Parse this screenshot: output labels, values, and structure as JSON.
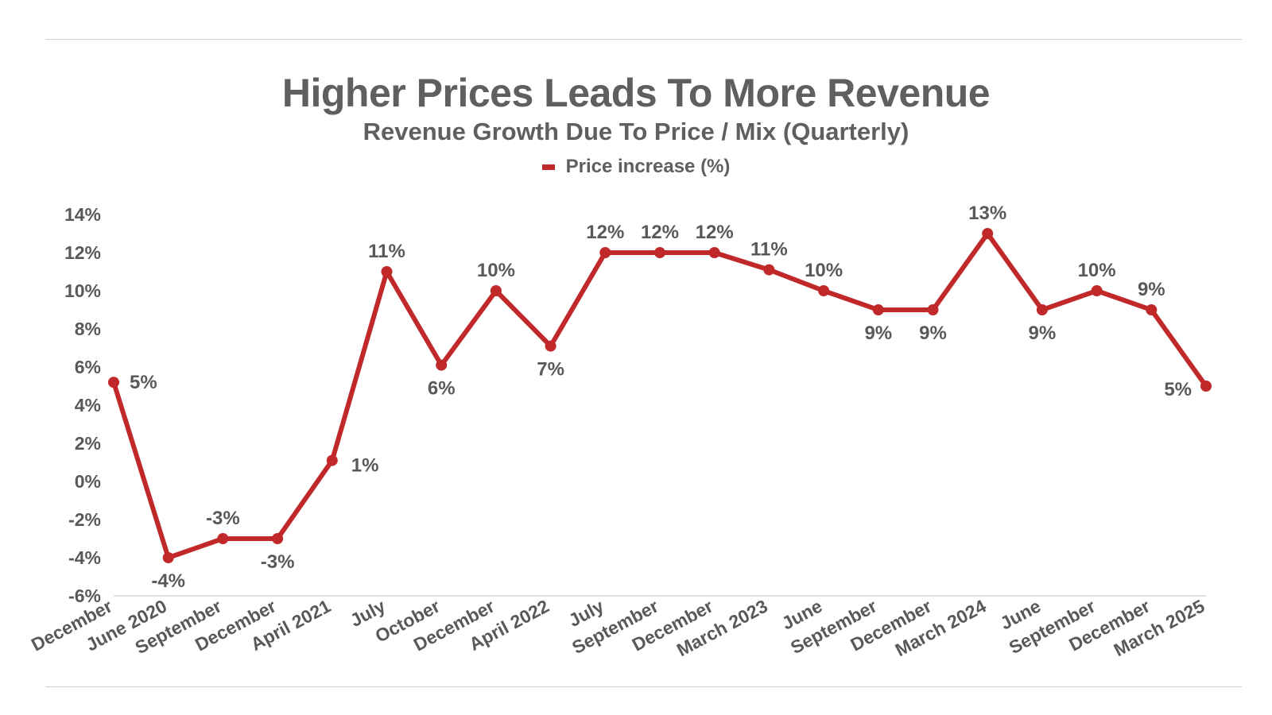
{
  "title": "Higher Prices Leads To More Revenue",
  "subtitle": "Revenue Growth Due To Price / Mix (Quarterly)",
  "legend": {
    "label": "Price increase (%)",
    "color": "#c0282a"
  },
  "chart_data": {
    "type": "line",
    "title": "Higher Prices Leads To More Revenue",
    "subtitle": "Revenue Growth Due To Price / Mix (Quarterly)",
    "categories": [
      "December",
      "June 2020",
      "September",
      "December",
      "April 2021",
      "July",
      "October",
      "December",
      "April 2022",
      "July",
      "September",
      "December",
      "March 2023",
      "June",
      "September",
      "December",
      "March 2024",
      "June",
      "September",
      "December",
      "March 2025"
    ],
    "series": [
      {
        "name": "Price increase (%)",
        "color": "#c0282a",
        "values": [
          5.2,
          -4,
          -3,
          -3,
          1.1,
          11,
          6.1,
          10,
          7.1,
          12,
          12,
          12,
          11.1,
          10,
          9,
          9,
          13,
          9,
          10,
          9,
          5
        ],
        "data_labels": [
          "5%",
          "-4%",
          "-3%",
          "-3%",
          "1%",
          "11%",
          "6%",
          "10%",
          "7%",
          "12%",
          "12%",
          "12%",
          "11%",
          "10%",
          "9%",
          "9%",
          "13%",
          "9%",
          "10%",
          "9%",
          "5%"
        ]
      }
    ],
    "ylim": [
      -6,
      14
    ],
    "yticks": [
      14,
      12,
      10,
      8,
      6,
      4,
      2,
      0,
      -2,
      -4,
      -6
    ],
    "ytick_labels": [
      "14%",
      "12%",
      "10%",
      "8%",
      "6%",
      "4%",
      "2%",
      "0%",
      "-2%",
      "-4%",
      "-6%"
    ],
    "xlabel": "",
    "ylabel": "",
    "grid": false,
    "legend_position": "top-center"
  }
}
